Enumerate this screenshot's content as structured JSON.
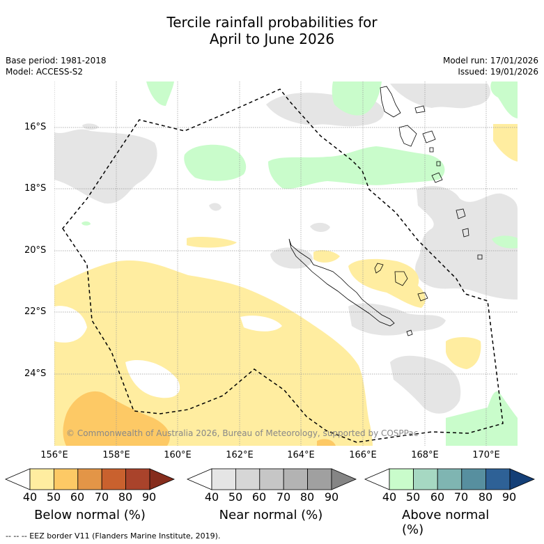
{
  "title": {
    "line1": "Tercile rainfall probabilities for",
    "line2": "April to June 2026"
  },
  "meta": {
    "base_period": "Base period: 1981-2018",
    "model": "Model: ACCESS-S2",
    "model_run": "Model run: 17/01/2026",
    "issued": "Issued: 19/01/2026"
  },
  "lat_labels": [
    "16°S",
    "18°S",
    "20°S",
    "22°S",
    "24°S"
  ],
  "lon_labels": [
    "156°E",
    "158°E",
    "160°E",
    "162°E",
    "164°E",
    "166°E",
    "168°E",
    "170°E"
  ],
  "copyright": "© Commonwealth of Australia 2026, Bureau of Meteorology, supported by COSPPac",
  "colorbars": {
    "below": {
      "title": "Below normal (%)",
      "ticks": [
        "40",
        "50",
        "60",
        "70",
        "80",
        "90"
      ],
      "colors": [
        "#ffffff",
        "#ffeda0",
        "#fdc965",
        "#e39547",
        "#c9612e",
        "#a9432b",
        "#862d1d"
      ]
    },
    "near": {
      "title": "Near normal (%)",
      "ticks": [
        "40",
        "50",
        "60",
        "70",
        "80",
        "90"
      ],
      "colors": [
        "#ffffff",
        "#e5e5e5",
        "#d6d6d6",
        "#c6c6c6",
        "#b3b3b3",
        "#a0a0a0",
        "#858585"
      ]
    },
    "above": {
      "title": "Above normal (%)",
      "ticks": [
        "40",
        "50",
        "60",
        "70",
        "80",
        "90"
      ],
      "colors": [
        "#ffffff",
        "#c9fccb",
        "#a6d8c2",
        "#7fb5b2",
        "#578f9f",
        "#2e6196",
        "#143f77"
      ]
    }
  },
  "footer": "--  --  -- EEZ border V11 (Flanders Marine Institute, 2019).",
  "colors": {
    "below_fill": "#ffeda0",
    "below_fill_60": "#fdc965",
    "near_fill": "#e5e5e5",
    "above_fill": "#c9fccb",
    "grid": "#999999"
  }
}
